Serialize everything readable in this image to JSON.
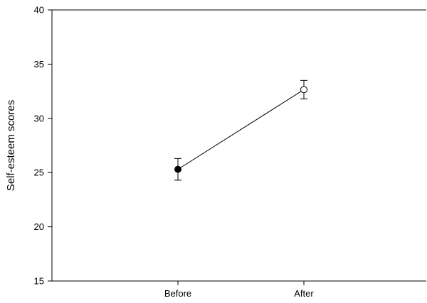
{
  "chart_data": {
    "type": "line",
    "title": "",
    "xlabel": "",
    "ylabel": "Self-esteem scores",
    "categories": [
      "Before",
      "After"
    ],
    "series": [
      {
        "values": [
          25.3,
          32.65
        ],
        "error_low": [
          24.3,
          31.8
        ],
        "error_high": [
          26.3,
          33.5
        ],
        "markers": [
          "filled-circle",
          "open-circle"
        ]
      }
    ],
    "yticks": [
      "15",
      "20",
      "25",
      "30",
      "35",
      "40"
    ],
    "ylim": [
      15,
      40
    ],
    "grid": false,
    "legend": "none",
    "colors": {
      "line": "#000000",
      "marker_fill": "#000000",
      "background": "#ffffff"
    }
  }
}
